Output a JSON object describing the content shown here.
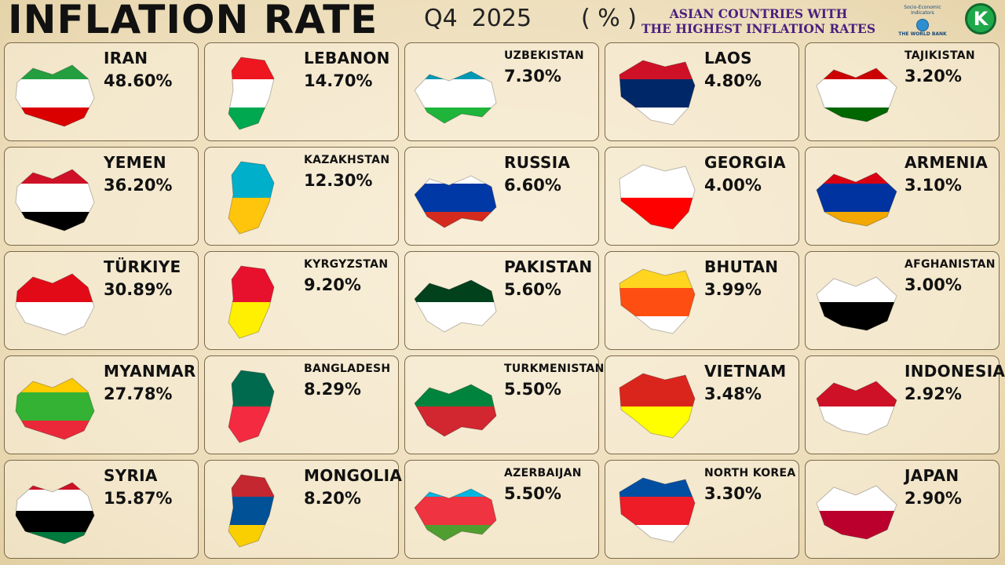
{
  "header": {
    "title": "INFLATION RATE",
    "quarter": "Q4",
    "year": "2025",
    "unit": "( % )",
    "subtitle_line1": "ASIAN COUNTRIES WITH",
    "subtitle_line2": "THE HIGHEST INFLATION RATES",
    "source_line1": "Socio-Economic",
    "source_line2": "Indicators",
    "source_line3": "THE WORLD BANK",
    "channel_logo": "K"
  },
  "countries": [
    {
      "name": "IRAN",
      "value": "48.60%",
      "flag_colors": [
        "#239f40",
        "#ffffff",
        "#da0000"
      ]
    },
    {
      "name": "LEBANON",
      "value": "14.70%",
      "flag_colors": [
        "#ee161f",
        "#ffffff",
        "#00a850"
      ]
    },
    {
      "name": "UZBEKISTAN",
      "value": "7.30%",
      "flag_colors": [
        "#0099b5",
        "#ffffff",
        "#1eb53a"
      ]
    },
    {
      "name": "LAOS",
      "value": "4.80%",
      "flag_colors": [
        "#ce1126",
        "#002868",
        "#ffffff"
      ]
    },
    {
      "name": "TAJIKISTAN",
      "value": "3.20%",
      "flag_colors": [
        "#cc0000",
        "#ffffff",
        "#006600"
      ]
    },
    {
      "name": "YEMEN",
      "value": "36.20%",
      "flag_colors": [
        "#ce1126",
        "#ffffff",
        "#000000"
      ]
    },
    {
      "name": "KAZAKHSTAN",
      "value": "12.30%",
      "flag_colors": [
        "#00afca",
        "#fec50c"
      ]
    },
    {
      "name": "RUSSIA",
      "value": "6.60%",
      "flag_colors": [
        "#ffffff",
        "#0039a6",
        "#d52b1e"
      ]
    },
    {
      "name": "GEORGIA",
      "value": "4.00%",
      "flag_colors": [
        "#ffffff",
        "#ff0000"
      ]
    },
    {
      "name": "ARMENIA",
      "value": "3.10%",
      "flag_colors": [
        "#d90012",
        "#0033a0",
        "#f2a800"
      ]
    },
    {
      "name": "TÜRKIYE",
      "value": "30.89%",
      "flag_colors": [
        "#e30a17",
        "#ffffff"
      ]
    },
    {
      "name": "KYRGYZSTAN",
      "value": "9.20%",
      "flag_colors": [
        "#e8112d",
        "#ffef00"
      ]
    },
    {
      "name": "PAKISTAN",
      "value": "5.60%",
      "flag_colors": [
        "#01411c",
        "#ffffff"
      ]
    },
    {
      "name": "BHUTAN",
      "value": "3.99%",
      "flag_colors": [
        "#ffd520",
        "#ff4e12",
        "#ffffff"
      ]
    },
    {
      "name": "AFGHANISTAN",
      "value": "3.00%",
      "flag_colors": [
        "#ffffff",
        "#000000"
      ]
    },
    {
      "name": "MYANMAR",
      "value": "27.78%",
      "flag_colors": [
        "#fecb00",
        "#34b233",
        "#ea2839"
      ]
    },
    {
      "name": "BANGLADESH",
      "value": "8.29%",
      "flag_colors": [
        "#006a4e",
        "#f42a41"
      ]
    },
    {
      "name": "TURKMENISTAN",
      "value": "5.50%",
      "flag_colors": [
        "#00843d",
        "#d22630"
      ]
    },
    {
      "name": "VIETNAM",
      "value": "3.48%",
      "flag_colors": [
        "#da251d",
        "#ffff00"
      ]
    },
    {
      "name": "INDONESIA",
      "value": "2.92%",
      "flag_colors": [
        "#ce1126",
        "#ffffff"
      ]
    },
    {
      "name": "SYRIA",
      "value": "15.87%",
      "flag_colors": [
        "#ce1126",
        "#ffffff",
        "#000000",
        "#007a3d"
      ]
    },
    {
      "name": "MONGOLIA",
      "value": "8.20%",
      "flag_colors": [
        "#c4272f",
        "#015197",
        "#f9cf02"
      ]
    },
    {
      "name": "AZERBAIJAN",
      "value": "5.50%",
      "flag_colors": [
        "#00b5e2",
        "#ef3340",
        "#509e2f"
      ]
    },
    {
      "name": "NORTH KOREA",
      "value": "3.30%",
      "flag_colors": [
        "#024fa2",
        "#ed1c27",
        "#ffffff"
      ]
    },
    {
      "name": "JAPAN",
      "value": "2.90%",
      "flag_colors": [
        "#ffffff",
        "#bc002d"
      ]
    }
  ]
}
